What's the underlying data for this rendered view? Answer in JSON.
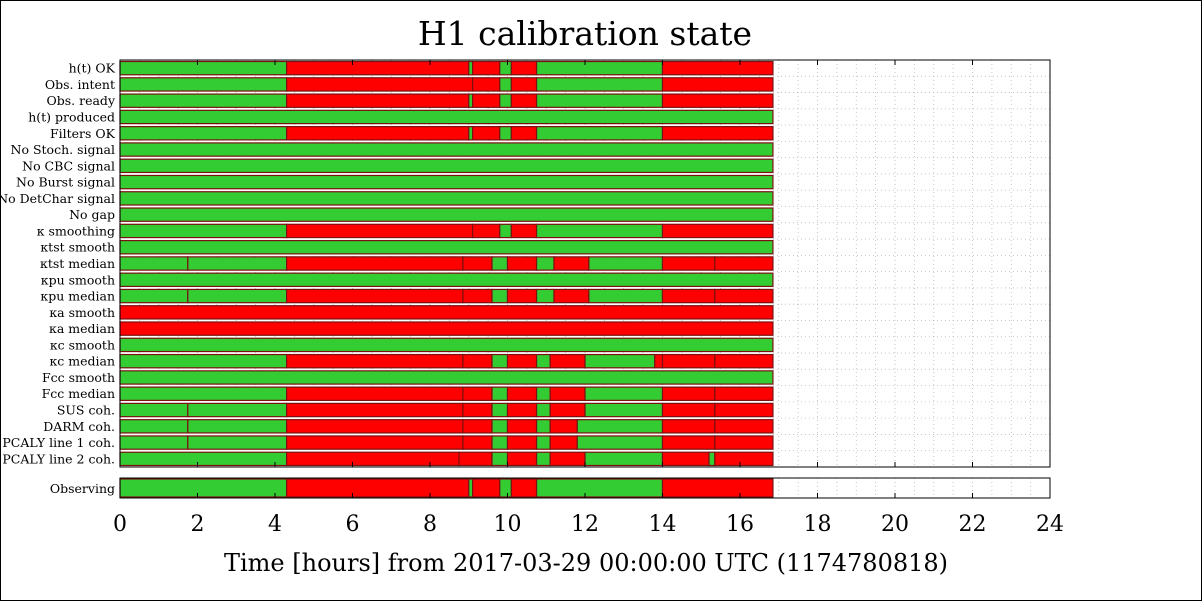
{
  "chart_data": {
    "type": "segment-timeline",
    "title": "H1 calibration state",
    "xlabel": "Time [hours] from 2017-03-29 00:00:00 UTC (1174780818)",
    "xlim": [
      0,
      24
    ],
    "xticks": [
      0,
      2,
      4,
      6,
      8,
      10,
      12,
      14,
      16,
      18,
      20,
      22,
      24
    ],
    "data_end": 16.85,
    "grid": true,
    "colors": {
      "active": "#33cc33",
      "inactive": "#ff0000",
      "edge": "#7a1010"
    },
    "flags": [
      {
        "label": "h(t) OK",
        "segments": [
          [
            0,
            4.3,
            1
          ],
          [
            4.3,
            9.0,
            0
          ],
          [
            9.0,
            9.1,
            1
          ],
          [
            9.1,
            9.8,
            0
          ],
          [
            9.8,
            10.1,
            1
          ],
          [
            10.1,
            10.75,
            0
          ],
          [
            10.75,
            14.0,
            1
          ],
          [
            14.0,
            16.85,
            0
          ]
        ]
      },
      {
        "label": "Obs. intent",
        "segments": [
          [
            0,
            4.3,
            1
          ],
          [
            4.3,
            9.1,
            0
          ],
          [
            9.1,
            9.8,
            0
          ],
          [
            9.8,
            10.1,
            1
          ],
          [
            10.1,
            10.75,
            0
          ],
          [
            10.75,
            14.0,
            1
          ],
          [
            14.0,
            16.85,
            0
          ]
        ]
      },
      {
        "label": "Obs. ready",
        "segments": [
          [
            0,
            4.3,
            1
          ],
          [
            4.3,
            9.0,
            0
          ],
          [
            9.0,
            9.1,
            1
          ],
          [
            9.1,
            9.8,
            0
          ],
          [
            9.8,
            10.1,
            1
          ],
          [
            10.1,
            10.75,
            0
          ],
          [
            10.75,
            14.0,
            1
          ],
          [
            14.0,
            16.85,
            0
          ]
        ]
      },
      {
        "label": "h(t) produced",
        "segments": [
          [
            0,
            16.85,
            1
          ]
        ]
      },
      {
        "label": "Filters OK",
        "segments": [
          [
            0,
            4.3,
            1
          ],
          [
            4.3,
            9.0,
            0
          ],
          [
            9.0,
            9.1,
            1
          ],
          [
            9.1,
            9.8,
            0
          ],
          [
            9.8,
            10.1,
            1
          ],
          [
            10.1,
            10.75,
            0
          ],
          [
            10.75,
            14.0,
            1
          ],
          [
            14.0,
            16.85,
            0
          ]
        ]
      },
      {
        "label": "No Stoch. signal",
        "segments": [
          [
            0,
            16.85,
            1
          ]
        ]
      },
      {
        "label": "No CBC signal",
        "segments": [
          [
            0,
            16.85,
            1
          ]
        ]
      },
      {
        "label": "No Burst signal",
        "segments": [
          [
            0,
            16.85,
            1
          ]
        ]
      },
      {
        "label": "No DetChar signal",
        "segments": [
          [
            0,
            16.85,
            1
          ]
        ]
      },
      {
        "label": "No gap",
        "segments": [
          [
            0,
            16.85,
            1
          ]
        ]
      },
      {
        "label": "κ smoothing",
        "segments": [
          [
            0,
            4.3,
            1
          ],
          [
            4.3,
            9.1,
            0
          ],
          [
            9.1,
            9.8,
            0
          ],
          [
            9.8,
            10.1,
            1
          ],
          [
            10.1,
            10.75,
            0
          ],
          [
            10.75,
            14.0,
            1
          ],
          [
            14.0,
            16.85,
            0
          ]
        ]
      },
      {
        "label": "κtst smooth",
        "segments": [
          [
            0,
            16.85,
            1
          ]
        ]
      },
      {
        "label": "κtst median",
        "segments": [
          [
            0,
            1.75,
            1
          ],
          [
            1.75,
            4.3,
            1
          ],
          [
            4.3,
            8.85,
            0
          ],
          [
            8.85,
            9.6,
            0
          ],
          [
            9.6,
            10.0,
            1
          ],
          [
            10.0,
            10.75,
            0
          ],
          [
            10.75,
            11.2,
            1
          ],
          [
            11.2,
            12.1,
            0
          ],
          [
            12.1,
            14.0,
            1
          ],
          [
            14.0,
            15.35,
            0
          ],
          [
            15.35,
            16.85,
            0
          ]
        ]
      },
      {
        "label": "κpu smooth",
        "segments": [
          [
            0,
            16.85,
            1
          ]
        ]
      },
      {
        "label": "κpu median",
        "segments": [
          [
            0,
            1.75,
            1
          ],
          [
            1.75,
            4.3,
            1
          ],
          [
            4.3,
            8.85,
            0
          ],
          [
            8.85,
            9.6,
            0
          ],
          [
            9.6,
            10.0,
            1
          ],
          [
            10.0,
            10.75,
            0
          ],
          [
            10.75,
            11.2,
            1
          ],
          [
            11.2,
            12.1,
            0
          ],
          [
            12.1,
            14.0,
            1
          ],
          [
            14.0,
            15.35,
            0
          ],
          [
            15.35,
            16.85,
            0
          ]
        ]
      },
      {
        "label": "κa smooth",
        "segments": [
          [
            0,
            16.85,
            0
          ]
        ]
      },
      {
        "label": "κa median",
        "segments": [
          [
            0,
            16.85,
            0
          ]
        ]
      },
      {
        "label": "κc smooth",
        "segments": [
          [
            0,
            16.85,
            1
          ]
        ]
      },
      {
        "label": "κc median",
        "segments": [
          [
            0,
            4.3,
            1
          ],
          [
            4.3,
            8.85,
            0
          ],
          [
            8.85,
            9.6,
            0
          ],
          [
            9.6,
            10.0,
            1
          ],
          [
            10.0,
            10.75,
            0
          ],
          [
            10.75,
            11.1,
            1
          ],
          [
            11.1,
            12.0,
            0
          ],
          [
            12.0,
            13.8,
            1
          ],
          [
            13.8,
            14.0,
            0
          ],
          [
            14.0,
            15.35,
            0
          ],
          [
            15.35,
            16.85,
            0
          ]
        ]
      },
      {
        "label": "Fcc smooth",
        "segments": [
          [
            0,
            16.85,
            1
          ]
        ]
      },
      {
        "label": "Fcc median",
        "segments": [
          [
            0,
            4.3,
            1
          ],
          [
            4.3,
            8.85,
            0
          ],
          [
            8.85,
            9.6,
            0
          ],
          [
            9.6,
            10.0,
            1
          ],
          [
            10.0,
            10.75,
            0
          ],
          [
            10.75,
            11.1,
            1
          ],
          [
            11.1,
            12.0,
            0
          ],
          [
            12.0,
            14.0,
            1
          ],
          [
            14.0,
            15.35,
            0
          ],
          [
            15.35,
            16.85,
            0
          ]
        ]
      },
      {
        "label": "SUS coh.",
        "segments": [
          [
            0,
            1.75,
            1
          ],
          [
            1.75,
            4.3,
            1
          ],
          [
            4.3,
            8.85,
            0
          ],
          [
            8.85,
            9.6,
            0
          ],
          [
            9.6,
            10.0,
            1
          ],
          [
            10.0,
            10.75,
            0
          ],
          [
            10.75,
            11.1,
            1
          ],
          [
            11.1,
            12.0,
            0
          ],
          [
            12.0,
            14.0,
            1
          ],
          [
            14.0,
            15.35,
            0
          ],
          [
            15.35,
            16.85,
            0
          ]
        ]
      },
      {
        "label": "DARM coh.",
        "segments": [
          [
            0,
            1.75,
            1
          ],
          [
            1.75,
            4.3,
            1
          ],
          [
            4.3,
            8.85,
            0
          ],
          [
            8.85,
            9.6,
            0
          ],
          [
            9.6,
            10.0,
            1
          ],
          [
            10.0,
            10.75,
            0
          ],
          [
            10.75,
            11.1,
            1
          ],
          [
            11.1,
            11.8,
            0
          ],
          [
            11.8,
            14.0,
            1
          ],
          [
            14.0,
            15.35,
            0
          ],
          [
            15.35,
            16.85,
            0
          ]
        ]
      },
      {
        "label": "PCALY line 1 coh.",
        "segments": [
          [
            0,
            1.75,
            1
          ],
          [
            1.75,
            4.3,
            1
          ],
          [
            4.3,
            8.85,
            0
          ],
          [
            8.85,
            9.6,
            0
          ],
          [
            9.6,
            10.0,
            1
          ],
          [
            10.0,
            10.75,
            0
          ],
          [
            10.75,
            11.1,
            1
          ],
          [
            11.1,
            11.8,
            0
          ],
          [
            11.8,
            14.0,
            1
          ],
          [
            14.0,
            15.35,
            0
          ],
          [
            15.35,
            16.85,
            0
          ]
        ]
      },
      {
        "label": "PCALY line 2 coh.",
        "segments": [
          [
            0,
            4.3,
            1
          ],
          [
            4.3,
            8.75,
            0
          ],
          [
            8.75,
            9.6,
            0
          ],
          [
            9.6,
            10.0,
            1
          ],
          [
            10.0,
            10.75,
            0
          ],
          [
            10.75,
            11.1,
            1
          ],
          [
            11.1,
            12.0,
            0
          ],
          [
            12.0,
            14.0,
            1
          ],
          [
            14.0,
            15.2,
            0
          ],
          [
            15.2,
            15.35,
            1
          ],
          [
            15.35,
            16.85,
            0
          ]
        ]
      }
    ],
    "observing": {
      "label": "Observing",
      "segments": [
        [
          0,
          4.3,
          1
        ],
        [
          4.3,
          9.0,
          0
        ],
        [
          9.0,
          9.1,
          1
        ],
        [
          9.1,
          9.8,
          0
        ],
        [
          9.8,
          10.1,
          1
        ],
        [
          10.1,
          10.75,
          0
        ],
        [
          10.75,
          14.0,
          1
        ],
        [
          14.0,
          16.85,
          0
        ]
      ]
    }
  }
}
